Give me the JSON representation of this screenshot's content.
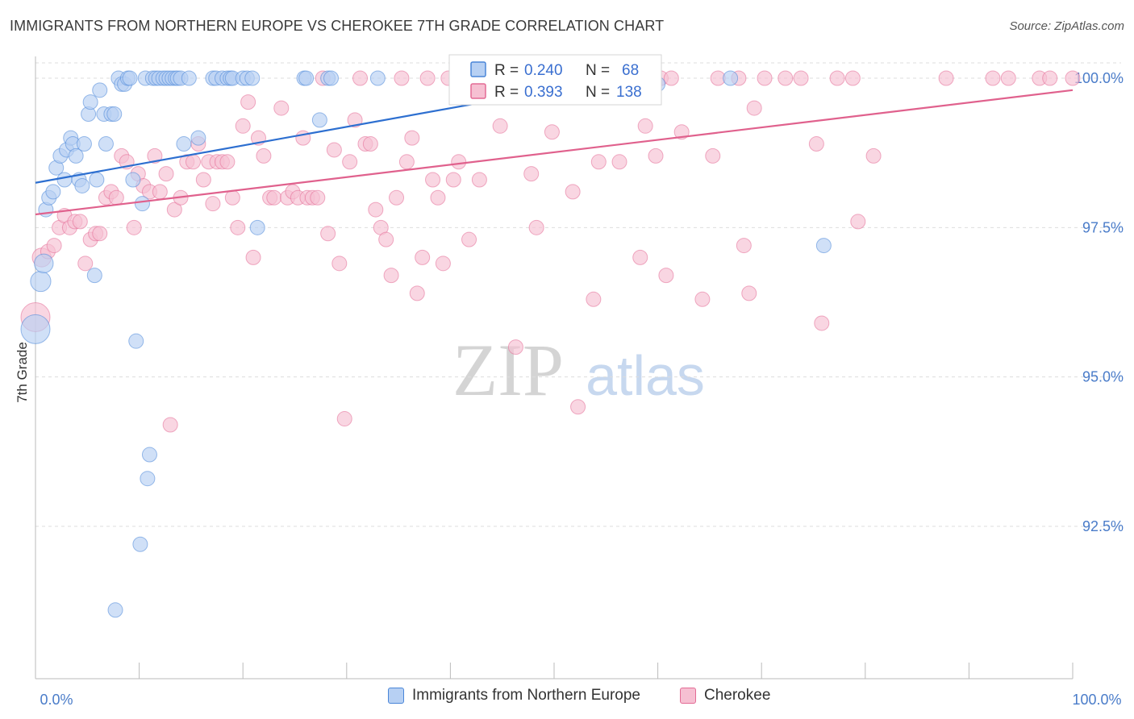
{
  "title": "IMMIGRANTS FROM NORTHERN EUROPE VS CHEROKEE 7TH GRADE CORRELATION CHART",
  "source": "Source: ZipAtlas.com",
  "watermark": {
    "zip": "ZIP",
    "atlas": "atlas"
  },
  "colors": {
    "blue": "#4a86d8",
    "blue_fill": "#b7d0f3",
    "blue_line": "#2d6fd0",
    "pink": "#e36b95",
    "pink_fill": "#f6c0d2",
    "pink_line": "#e0618d",
    "axis_text": "#4a7cc9",
    "grid": "#dddddd"
  },
  "stats_box": {
    "rows": [
      {
        "series": "blue",
        "r_label": "R =",
        "r_value": "0.240",
        "n_label": "N =",
        "n_value": "68"
      },
      {
        "series": "pink",
        "r_label": "R =",
        "r_value": "0.393",
        "n_label": "N =",
        "n_value": "138"
      }
    ]
  },
  "legend": {
    "items": [
      {
        "series": "blue",
        "label": "Immigrants from Northern Europe"
      },
      {
        "series": "pink",
        "label": "Cherokee"
      }
    ]
  },
  "chart_data": {
    "type": "scatter",
    "title": "IMMIGRANTS FROM NORTHERN EUROPE VS CHEROKEE 7TH GRADE CORRELATION CHART",
    "xlabel": "",
    "ylabel": "7th Grade",
    "xlim": [
      0,
      100
    ],
    "ylim": [
      90.2,
      100.4
    ],
    "x_tick_labels": [
      "0.0%",
      "100.0%"
    ],
    "y_ticks": [
      {
        "value": 100.0,
        "label": "100.0%"
      },
      {
        "value": 97.5,
        "label": "97.5%"
      },
      {
        "value": 95.0,
        "label": "95.0%"
      },
      {
        "value": 92.5,
        "label": "92.5%"
      }
    ],
    "series": [
      {
        "name": "Immigrants from Northern Europe",
        "color": "blue",
        "R": 0.24,
        "N": 68,
        "trend": {
          "x": [
            0,
            50
          ],
          "y": [
            98.25,
            99.81
          ]
        },
        "points": [
          [
            0.0,
            95.8,
            2.0
          ],
          [
            0.5,
            96.6,
            1.4
          ],
          [
            0.8,
            96.9,
            1.3
          ],
          [
            1.0,
            97.8,
            1.0
          ],
          [
            1.3,
            98.0,
            1.0
          ],
          [
            1.7,
            98.1,
            1.0
          ],
          [
            2.0,
            98.5,
            1.0
          ],
          [
            2.4,
            98.7,
            1.0
          ],
          [
            2.8,
            98.3,
            1.0
          ],
          [
            3.0,
            98.8,
            1.0
          ],
          [
            3.4,
            99.0,
            1.0
          ],
          [
            3.6,
            98.9,
            1.0
          ],
          [
            3.9,
            98.7,
            1.0
          ],
          [
            4.2,
            98.3,
            1.0
          ],
          [
            4.5,
            98.2,
            1.0
          ],
          [
            4.7,
            98.9,
            1.0
          ],
          [
            5.1,
            99.4,
            1.0
          ],
          [
            5.3,
            99.6,
            1.0
          ],
          [
            5.7,
            96.7,
            1.0
          ],
          [
            5.9,
            98.3,
            1.0
          ],
          [
            6.2,
            99.8,
            1.0
          ],
          [
            6.6,
            99.4,
            1.0
          ],
          [
            6.8,
            98.9,
            1.0
          ],
          [
            7.3,
            99.4,
            1.0
          ],
          [
            7.6,
            99.4,
            1.0
          ],
          [
            7.7,
            91.1,
            1.0
          ],
          [
            8.0,
            100.0,
            1.0
          ],
          [
            8.3,
            99.9,
            1.0
          ],
          [
            8.6,
            99.9,
            1.0
          ],
          [
            8.9,
            100.0,
            1.0
          ],
          [
            9.1,
            100.0,
            1.0
          ],
          [
            9.4,
            98.3,
            1.0
          ],
          [
            9.7,
            95.6,
            1.0
          ],
          [
            10.1,
            92.2,
            1.0
          ],
          [
            10.3,
            97.9,
            1.0
          ],
          [
            10.6,
            100.0,
            1.0
          ],
          [
            10.8,
            93.3,
            1.0
          ],
          [
            11.0,
            93.7,
            1.0
          ],
          [
            11.3,
            100.0,
            1.0
          ],
          [
            11.6,
            100.0,
            1.0
          ],
          [
            11.9,
            100.0,
            1.0
          ],
          [
            12.3,
            100.0,
            1.0
          ],
          [
            12.6,
            100.0,
            1.0
          ],
          [
            12.9,
            100.0,
            1.0
          ],
          [
            13.2,
            100.0,
            1.0
          ],
          [
            13.5,
            100.0,
            1.0
          ],
          [
            13.7,
            100.0,
            1.0
          ],
          [
            14.0,
            100.0,
            1.0
          ],
          [
            14.3,
            98.9,
            1.0
          ],
          [
            14.8,
            100.0,
            1.0
          ],
          [
            15.7,
            99.0,
            1.0
          ],
          [
            17.1,
            100.0,
            1.0
          ],
          [
            17.4,
            100.0,
            1.0
          ],
          [
            18.0,
            100.0,
            1.0
          ],
          [
            18.5,
            100.0,
            1.0
          ],
          [
            18.8,
            100.0,
            1.0
          ],
          [
            19.0,
            100.0,
            1.0
          ],
          [
            20.0,
            100.0,
            1.0
          ],
          [
            20.4,
            100.0,
            1.0
          ],
          [
            20.9,
            100.0,
            1.0
          ],
          [
            21.4,
            97.5,
            1.0
          ],
          [
            25.9,
            100.0,
            1.0
          ],
          [
            26.1,
            100.0,
            1.0
          ],
          [
            27.4,
            99.3,
            1.0
          ],
          [
            28.2,
            100.0,
            1.0
          ],
          [
            28.5,
            100.0,
            1.0
          ],
          [
            33.0,
            100.0,
            1.0
          ],
          [
            67.0,
            100.0,
            1.0
          ],
          [
            76.0,
            97.2,
            1.0
          ],
          [
            60.0,
            99.9,
            1.0
          ]
        ]
      },
      {
        "name": "Cherokee",
        "color": "pink",
        "R": 0.393,
        "N": 138,
        "trend": {
          "x": [
            0,
            100
          ],
          "y": [
            97.72,
            99.8
          ]
        },
        "points": [
          [
            0.0,
            96.0,
            2.0
          ],
          [
            0.6,
            97.0,
            1.3
          ],
          [
            1.2,
            97.1,
            1.0
          ],
          [
            1.8,
            97.2,
            1.0
          ],
          [
            2.3,
            97.5,
            1.0
          ],
          [
            2.8,
            97.7,
            1.0
          ],
          [
            3.3,
            97.5,
            1.0
          ],
          [
            3.8,
            97.6,
            1.0
          ],
          [
            4.3,
            97.6,
            1.0
          ],
          [
            4.8,
            96.9,
            1.0
          ],
          [
            5.3,
            97.3,
            1.0
          ],
          [
            5.8,
            97.4,
            1.0
          ],
          [
            6.2,
            97.4,
            1.0
          ],
          [
            6.8,
            98.0,
            1.0
          ],
          [
            7.3,
            98.1,
            1.0
          ],
          [
            7.8,
            98.0,
            1.0
          ],
          [
            8.3,
            98.7,
            1.0
          ],
          [
            8.8,
            98.6,
            1.0
          ],
          [
            9.5,
            97.5,
            1.0
          ],
          [
            9.9,
            98.4,
            1.0
          ],
          [
            10.4,
            98.2,
            1.0
          ],
          [
            11.0,
            98.1,
            1.0
          ],
          [
            11.5,
            98.7,
            1.0
          ],
          [
            12.0,
            98.1,
            1.0
          ],
          [
            12.6,
            98.4,
            1.0
          ],
          [
            13.0,
            94.2,
            1.0
          ],
          [
            13.4,
            97.8,
            1.0
          ],
          [
            14.0,
            98.0,
            1.0
          ],
          [
            14.6,
            98.6,
            1.0
          ],
          [
            15.2,
            98.6,
            1.0
          ],
          [
            15.7,
            98.9,
            1.0
          ],
          [
            16.2,
            98.3,
            1.0
          ],
          [
            16.7,
            98.6,
            1.0
          ],
          [
            17.1,
            97.9,
            1.0
          ],
          [
            17.5,
            98.6,
            1.0
          ],
          [
            18.0,
            98.6,
            1.0
          ],
          [
            18.5,
            98.6,
            1.0
          ],
          [
            19.0,
            98.0,
            1.0
          ],
          [
            19.5,
            97.5,
            1.0
          ],
          [
            20.0,
            99.2,
            1.0
          ],
          [
            20.5,
            99.6,
            1.0
          ],
          [
            21.0,
            97.0,
            1.0
          ],
          [
            21.5,
            99.0,
            1.0
          ],
          [
            22.0,
            98.7,
            1.0
          ],
          [
            22.6,
            98.0,
            1.0
          ],
          [
            23.0,
            98.0,
            1.0
          ],
          [
            23.7,
            99.5,
            1.0
          ],
          [
            24.3,
            98.0,
            1.0
          ],
          [
            24.8,
            98.1,
            1.0
          ],
          [
            25.3,
            98.0,
            1.0
          ],
          [
            25.8,
            99.0,
            1.0
          ],
          [
            26.2,
            98.0,
            1.0
          ],
          [
            26.7,
            98.0,
            1.0
          ],
          [
            27.2,
            98.0,
            1.0
          ],
          [
            27.7,
            100.0,
            1.0
          ],
          [
            28.2,
            97.4,
            1.0
          ],
          [
            28.8,
            98.8,
            1.0
          ],
          [
            29.3,
            96.9,
            1.0
          ],
          [
            29.8,
            94.3,
            1.0
          ],
          [
            30.3,
            98.6,
            1.0
          ],
          [
            30.8,
            99.3,
            1.0
          ],
          [
            31.3,
            100.0,
            1.0
          ],
          [
            31.8,
            98.9,
            1.0
          ],
          [
            32.3,
            98.9,
            1.0
          ],
          [
            32.8,
            97.8,
            1.0
          ],
          [
            33.3,
            97.5,
            1.0
          ],
          [
            33.8,
            97.3,
            1.0
          ],
          [
            34.3,
            96.7,
            1.0
          ],
          [
            34.8,
            98.0,
            1.0
          ],
          [
            35.3,
            100.0,
            1.0
          ],
          [
            35.8,
            98.6,
            1.0
          ],
          [
            36.3,
            99.0,
            1.0
          ],
          [
            36.8,
            96.4,
            1.0
          ],
          [
            37.3,
            97.0,
            1.0
          ],
          [
            37.8,
            100.0,
            1.0
          ],
          [
            38.3,
            98.3,
            1.0
          ],
          [
            38.8,
            98.0,
            1.0
          ],
          [
            39.3,
            96.9,
            1.0
          ],
          [
            39.8,
            100.0,
            1.0
          ],
          [
            40.3,
            98.3,
            1.0
          ],
          [
            40.8,
            98.6,
            1.0
          ],
          [
            41.3,
            100.0,
            1.0
          ],
          [
            41.8,
            97.3,
            1.0
          ],
          [
            42.3,
            100.0,
            1.0
          ],
          [
            42.8,
            98.3,
            1.0
          ],
          [
            43.3,
            100.0,
            1.0
          ],
          [
            44.3,
            100.0,
            1.0
          ],
          [
            44.8,
            99.2,
            1.0
          ],
          [
            45.3,
            100.0,
            1.0
          ],
          [
            46.3,
            95.5,
            1.0
          ],
          [
            47.3,
            100.0,
            1.0
          ],
          [
            47.8,
            98.4,
            1.0
          ],
          [
            48.3,
            97.5,
            1.0
          ],
          [
            49.3,
            100.0,
            1.0
          ],
          [
            49.8,
            99.1,
            1.0
          ],
          [
            50.3,
            100.0,
            1.0
          ],
          [
            51.3,
            100.0,
            1.0
          ],
          [
            51.8,
            98.1,
            1.0
          ],
          [
            52.3,
            94.5,
            1.0
          ],
          [
            53.3,
            100.0,
            1.0
          ],
          [
            53.8,
            96.3,
            1.0
          ],
          [
            54.3,
            98.6,
            1.0
          ],
          [
            55.3,
            100.0,
            1.0
          ],
          [
            56.3,
            98.6,
            1.0
          ],
          [
            57.3,
            100.0,
            1.0
          ],
          [
            58.3,
            97.0,
            1.0
          ],
          [
            58.8,
            99.2,
            1.0
          ],
          [
            59.8,
            98.7,
            1.0
          ],
          [
            60.3,
            100.0,
            1.0
          ],
          [
            60.8,
            96.7,
            1.0
          ],
          [
            61.3,
            100.0,
            1.0
          ],
          [
            62.3,
            99.1,
            1.0
          ],
          [
            64.3,
            96.3,
            1.0
          ],
          [
            65.3,
            98.7,
            1.0
          ],
          [
            65.8,
            100.0,
            1.0
          ],
          [
            67.8,
            100.0,
            1.0
          ],
          [
            68.3,
            97.2,
            1.0
          ],
          [
            68.8,
            96.4,
            1.0
          ],
          [
            69.3,
            99.5,
            1.0
          ],
          [
            70.3,
            100.0,
            1.0
          ],
          [
            72.3,
            100.0,
            1.0
          ],
          [
            73.8,
            100.0,
            1.0
          ],
          [
            75.3,
            98.9,
            1.0
          ],
          [
            75.8,
            95.9,
            1.0
          ],
          [
            77.3,
            100.0,
            1.0
          ],
          [
            78.8,
            100.0,
            1.0
          ],
          [
            79.3,
            97.6,
            1.0
          ],
          [
            80.8,
            98.7,
            1.0
          ],
          [
            87.8,
            100.0,
            1.0
          ],
          [
            92.3,
            100.0,
            1.0
          ],
          [
            93.8,
            100.0,
            1.0
          ],
          [
            96.8,
            100.0,
            1.0
          ],
          [
            97.8,
            100.0,
            1.0
          ],
          [
            100.0,
            100.0,
            1.0
          ]
        ]
      }
    ]
  }
}
